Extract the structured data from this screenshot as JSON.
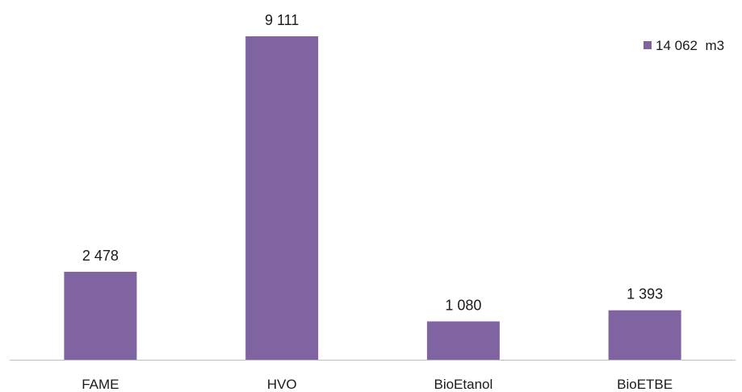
{
  "chart_data": {
    "type": "bar",
    "categories": [
      "FAME",
      "HVO",
      "BioEtanol",
      "BioETBE"
    ],
    "series": [
      {
        "name": "14 062  m3",
        "values": [
          2478,
          9111,
          1080,
          1393
        ],
        "data_labels": [
          "2 478",
          "9 111",
          "1 080",
          "1 393"
        ],
        "color": "#8064a2"
      }
    ],
    "title": "",
    "xlabel": "",
    "ylabel": "",
    "ylim": [
      0,
      9111
    ],
    "grid": false,
    "legend_position": "top-right"
  }
}
